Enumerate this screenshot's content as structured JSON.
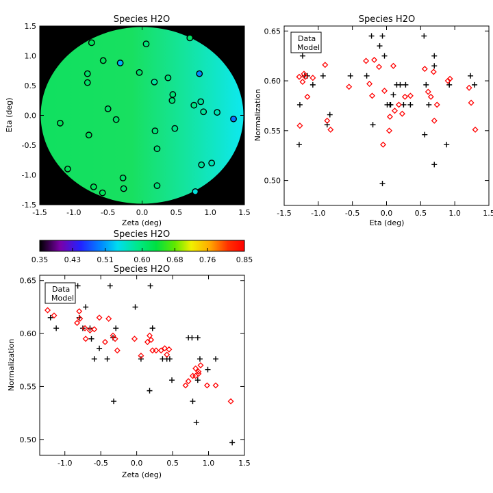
{
  "colors": {
    "axis": "#000000",
    "data": "#000000",
    "model": "#ff0000",
    "background": "#ffffff",
    "map_outside": "#000000"
  },
  "chart_data": [
    {
      "id": "map",
      "type": "scatter",
      "title": "Species H2O",
      "xlabel": "Zeta (deg)",
      "ylabel": "Eta (deg)",
      "xlim": [
        -1.5,
        1.5
      ],
      "ylim": [
        -1.5,
        1.5
      ],
      "xticks": [
        "-1.5",
        "-1.0",
        "-0.5",
        "0.0",
        "0.5",
        "1.0",
        "1.5"
      ],
      "yticks": [
        "-1.5",
        "-1.0",
        "-0.5",
        "0.0",
        "0.5",
        "1.0",
        "1.5"
      ],
      "background": "normalization map (circular field, green to cyan)",
      "points": [
        {
          "zeta": -0.74,
          "eta": 1.22,
          "norm": 0.62
        },
        {
          "zeta": 0.06,
          "eta": 1.2,
          "norm": 0.6
        },
        {
          "zeta": 0.7,
          "eta": 1.3,
          "norm": 0.61
        },
        {
          "zeta": -0.57,
          "eta": 0.92,
          "norm": 0.62
        },
        {
          "zeta": -0.32,
          "eta": 0.88,
          "norm": 0.52
        },
        {
          "zeta": -0.8,
          "eta": 0.7,
          "norm": 0.61
        },
        {
          "zeta": -0.04,
          "eta": 0.72,
          "norm": 0.61
        },
        {
          "zeta": 0.84,
          "eta": 0.7,
          "norm": 0.5
        },
        {
          "zeta": -0.8,
          "eta": 0.55,
          "norm": 0.61
        },
        {
          "zeta": 0.18,
          "eta": 0.56,
          "norm": 0.58
        },
        {
          "zeta": 0.38,
          "eta": 0.63,
          "norm": 0.6
        },
        {
          "zeta": 0.45,
          "eta": 0.35,
          "norm": 0.6
        },
        {
          "zeta": 0.44,
          "eta": 0.25,
          "norm": 0.6
        },
        {
          "zeta": 0.86,
          "eta": 0.23,
          "norm": 0.58
        },
        {
          "zeta": 0.76,
          "eta": 0.17,
          "norm": 0.59
        },
        {
          "zeta": -0.5,
          "eta": 0.11,
          "norm": 0.61
        },
        {
          "zeta": 0.9,
          "eta": 0.06,
          "norm": 0.58
        },
        {
          "zeta": 1.1,
          "eta": 0.05,
          "norm": 0.57
        },
        {
          "zeta": 1.34,
          "eta": -0.06,
          "norm": 0.49
        },
        {
          "zeta": -0.38,
          "eta": -0.07,
          "norm": 0.61
        },
        {
          "zeta": -1.2,
          "eta": -0.13,
          "norm": 0.62
        },
        {
          "zeta": 0.48,
          "eta": -0.22,
          "norm": 0.59
        },
        {
          "zeta": 0.19,
          "eta": -0.26,
          "norm": 0.6
        },
        {
          "zeta": -0.78,
          "eta": -0.33,
          "norm": 0.62
        },
        {
          "zeta": 0.22,
          "eta": -0.56,
          "norm": 0.6
        },
        {
          "zeta": 1.02,
          "eta": -0.8,
          "norm": 0.57
        },
        {
          "zeta": 0.87,
          "eta": -0.83,
          "norm": 0.58
        },
        {
          "zeta": -1.09,
          "eta": -0.9,
          "norm": 0.62
        },
        {
          "zeta": -0.28,
          "eta": -1.05,
          "norm": 0.61
        },
        {
          "zeta": 0.22,
          "eta": -1.18,
          "norm": 0.6
        },
        {
          "zeta": -0.71,
          "eta": -1.2,
          "norm": 0.62
        },
        {
          "zeta": -0.27,
          "eta": -1.23,
          "norm": 0.61
        },
        {
          "zeta": -0.58,
          "eta": -1.3,
          "norm": 0.62
        },
        {
          "zeta": 0.78,
          "eta": -1.28,
          "norm": 0.55
        }
      ]
    },
    {
      "id": "colorbar",
      "type": "heatmap",
      "title": "Species H2O",
      "range": [
        0.35,
        0.85
      ],
      "tick_labels": [
        "0.35",
        "0.43",
        "0.51",
        "0.60",
        "0.68",
        "0.76",
        "0.85"
      ]
    },
    {
      "id": "norm_vs_eta",
      "type": "scatter",
      "title": "Species H2O",
      "xlabel": "Eta (deg)",
      "ylabel": "Normalization",
      "xlim": [
        -1.5,
        1.5
      ],
      "ylim": [
        0.475,
        0.655
      ],
      "xticks": [
        "-1.5",
        "-1.0",
        "-0.5",
        "0.0",
        "0.5",
        "1.0",
        "1.5"
      ],
      "yticks": [
        "0.50",
        "0.55",
        "0.60",
        "0.65"
      ],
      "legend": {
        "position": "top-left",
        "data_label": "Data",
        "model_label": "Model"
      },
      "series": [
        {
          "name": "Data",
          "marker": "plus",
          "color": "#000000",
          "x": [
            -1.27,
            -1.23,
            -1.2,
            -1.16,
            -1.08,
            -1.28,
            -0.93,
            -0.87,
            -0.83,
            -0.53,
            -0.29,
            -0.22,
            -0.2,
            -0.1,
            -0.06,
            -0.03,
            0.01,
            0.05,
            0.06,
            0.1,
            0.15,
            0.2,
            0.25,
            0.28,
            0.35,
            0.55,
            0.56,
            0.58,
            0.62,
            0.7,
            0.7,
            0.7,
            0.88,
            0.92,
            1.23,
            1.29,
            -0.06
          ],
          "y": [
            0.576,
            0.625,
            0.605,
            0.605,
            0.596,
            0.536,
            0.605,
            0.556,
            0.566,
            0.605,
            0.605,
            0.645,
            0.556,
            0.635,
            0.645,
            0.625,
            0.576,
            0.576,
            0.576,
            0.586,
            0.596,
            0.596,
            0.576,
            0.596,
            0.576,
            0.645,
            0.546,
            0.596,
            0.576,
            0.625,
            0.615,
            0.516,
            0.536,
            0.596,
            0.605,
            0.596,
            0.497
          ]
        },
        {
          "name": "Model",
          "marker": "diamond",
          "color": "#ff0000",
          "x": [
            -1.28,
            -1.27,
            -1.23,
            -1.21,
            -1.19,
            -1.16,
            -1.08,
            -0.9,
            -0.87,
            -0.82,
            -0.55,
            -0.3,
            -0.25,
            -0.21,
            -0.18,
            -0.11,
            -0.05,
            -0.03,
            0.04,
            0.05,
            0.1,
            0.12,
            0.18,
            0.23,
            0.27,
            0.35,
            0.56,
            0.61,
            0.65,
            0.69,
            0.7,
            0.74,
            0.9,
            0.93,
            1.21,
            1.24,
            1.3
          ],
          "y": [
            0.604,
            0.555,
            0.599,
            0.607,
            0.604,
            0.584,
            0.603,
            0.616,
            0.56,
            0.551,
            0.594,
            0.62,
            0.597,
            0.585,
            0.621,
            0.614,
            0.536,
            0.59,
            0.55,
            0.564,
            0.615,
            0.57,
            0.576,
            0.567,
            0.584,
            0.585,
            0.612,
            0.589,
            0.584,
            0.609,
            0.56,
            0.576,
            0.6,
            0.602,
            0.593,
            0.578,
            0.551
          ]
        }
      ]
    },
    {
      "id": "norm_vs_zeta",
      "type": "scatter",
      "title": "Species H2O",
      "xlabel": "Zeta (deg)",
      "ylabel": "Normalization",
      "xlim": [
        -1.35,
        1.5
      ],
      "ylim": [
        0.485,
        0.655
      ],
      "xticks": [
        "-1.0",
        "-0.5",
        "0.0",
        "0.5",
        "1.0",
        "1.5"
      ],
      "yticks": [
        "0.50",
        "0.55",
        "0.60",
        "0.65"
      ],
      "legend": {
        "position": "top-left",
        "data_label": "Data",
        "model_label": "Model"
      },
      "series": [
        {
          "name": "Data",
          "marker": "plus",
          "color": "#000000",
          "x": [
            -1.2,
            -1.12,
            -0.82,
            -0.8,
            -0.75,
            -0.71,
            -0.65,
            -0.63,
            -0.59,
            -0.52,
            -0.41,
            -0.37,
            -0.33,
            -0.29,
            -0.02,
            0.06,
            0.18,
            0.19,
            0.22,
            0.22,
            0.36,
            0.42,
            0.46,
            0.49,
            0.72,
            0.77,
            0.78,
            0.83,
            0.85,
            0.85,
            0.88,
            0.99,
            1.1,
            1.33,
            -0.32
          ],
          "y": [
            0.615,
            0.605,
            0.645,
            0.615,
            0.605,
            0.625,
            0.605,
            0.595,
            0.576,
            0.586,
            0.576,
            0.645,
            0.596,
            0.605,
            0.625,
            0.576,
            0.546,
            0.645,
            0.605,
            0.605,
            0.576,
            0.576,
            0.576,
            0.556,
            0.596,
            0.596,
            0.536,
            0.516,
            0.596,
            0.556,
            0.576,
            0.566,
            0.576,
            0.497,
            0.536
          ]
        },
        {
          "name": "Model",
          "marker": "diamond",
          "color": "#ff0000",
          "x": [
            -1.24,
            -1.15,
            -0.83,
            -0.8,
            -0.79,
            -0.72,
            -0.71,
            -0.65,
            -0.59,
            -0.52,
            -0.44,
            -0.39,
            -0.33,
            -0.3,
            -0.27,
            -0.03,
            0.06,
            0.15,
            0.18,
            0.2,
            0.22,
            0.27,
            0.34,
            0.39,
            0.42,
            0.45,
            0.68,
            0.72,
            0.78,
            0.82,
            0.82,
            0.86,
            0.86,
            0.89,
            0.98,
            1.1,
            1.31
          ],
          "y": [
            0.622,
            0.617,
            0.61,
            0.621,
            0.614,
            0.605,
            0.595,
            0.603,
            0.604,
            0.615,
            0.592,
            0.614,
            0.598,
            0.595,
            0.584,
            0.595,
            0.579,
            0.592,
            0.598,
            0.594,
            0.584,
            0.584,
            0.584,
            0.586,
            0.58,
            0.585,
            0.551,
            0.555,
            0.56,
            0.567,
            0.56,
            0.564,
            0.562,
            0.57,
            0.551,
            0.551,
            0.536
          ]
        }
      ]
    }
  ]
}
